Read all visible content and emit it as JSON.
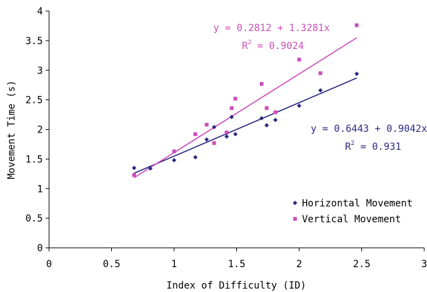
{
  "chart_data": {
    "type": "scatter",
    "xlabel": "Index of Difficulty (ID)",
    "ylabel": "Movement Time (s)",
    "xlim": [
      0,
      3
    ],
    "ylim": [
      0,
      4
    ],
    "x_ticks": [
      "0",
      "0.5",
      "1",
      "1.5",
      "2",
      "2.5",
      "3"
    ],
    "y_ticks": [
      "0",
      "0.5",
      "1",
      "1.5",
      "2",
      "2.5",
      "3",
      "3.5",
      "4"
    ],
    "grid": false,
    "legend_position": "bottom-right",
    "series": [
      {
        "name": "Horizontal Movement",
        "marker": "diamond",
        "color": "#2a2a80",
        "points": [
          [
            0.68,
            1.35
          ],
          [
            0.81,
            1.34
          ],
          [
            1.0,
            1.48
          ],
          [
            1.17,
            1.53
          ],
          [
            1.26,
            1.83
          ],
          [
            1.32,
            2.04
          ],
          [
            1.42,
            1.88
          ],
          [
            1.42,
            1.94
          ],
          [
            1.46,
            2.21
          ],
          [
            1.49,
            1.92
          ],
          [
            1.7,
            2.19
          ],
          [
            1.74,
            2.07
          ],
          [
            1.81,
            2.16
          ],
          [
            2.0,
            2.4
          ],
          [
            2.17,
            2.66
          ],
          [
            2.46,
            2.94
          ]
        ],
        "fit": {
          "intercept": 0.6443,
          "slope": 0.9042,
          "x_range": [
            0.68,
            2.46
          ],
          "equation": "y = 0.6443 + 0.9042x",
          "r2_label": "R",
          "r2_sup": "2",
          "r2_value": " = 0.931"
        }
      },
      {
        "name": "Vertical Movement",
        "marker": "square",
        "color": "#cc4fb8",
        "points": [
          [
            0.68,
            1.23
          ],
          [
            1.0,
            1.63
          ],
          [
            1.17,
            1.92
          ],
          [
            1.26,
            2.08
          ],
          [
            1.32,
            1.77
          ],
          [
            1.42,
            1.95
          ],
          [
            1.46,
            2.36
          ],
          [
            1.49,
            2.52
          ],
          [
            1.7,
            2.77
          ],
          [
            1.74,
            2.36
          ],
          [
            1.81,
            2.29
          ],
          [
            2.0,
            3.18
          ],
          [
            2.17,
            2.95
          ],
          [
            2.46,
            3.76
          ]
        ],
        "fit": {
          "intercept": 0.2812,
          "slope": 1.3281,
          "x_range": [
            0.68,
            2.46
          ],
          "equation": "y = 0.2812 + 1.3281x",
          "r2_label": "R",
          "r2_sup": "2",
          "r2_value": " = 0.9024"
        }
      }
    ]
  }
}
